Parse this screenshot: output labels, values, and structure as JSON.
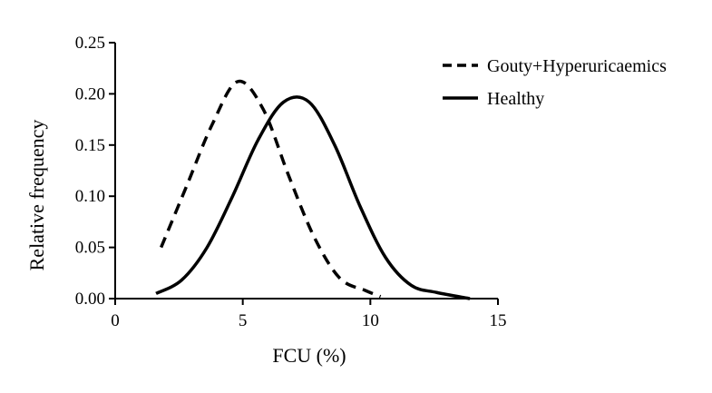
{
  "chart_data": {
    "type": "line",
    "xlabel": "FCU (%)",
    "ylabel": "Relative frequency",
    "xlim": [
      0,
      15
    ],
    "ylim": [
      0,
      0.25
    ],
    "x_ticks": [
      "0",
      "5",
      "10",
      "15"
    ],
    "y_ticks": [
      "0.00",
      "0.05",
      "0.10",
      "0.15",
      "0.20",
      "0.25"
    ],
    "grid": false,
    "legend_position": "top-right",
    "series": [
      {
        "name": "Gouty+Hyperuricaemics",
        "style": "dashed",
        "color": "#000000",
        "x": [
          1.8,
          2.8,
          3.8,
          4.8,
          5.8,
          6.8,
          7.8,
          8.8,
          9.8,
          10.4
        ],
        "y": [
          0.05,
          0.11,
          0.17,
          0.212,
          0.185,
          0.12,
          0.06,
          0.02,
          0.008,
          0.002
        ]
      },
      {
        "name": "Healthy",
        "style": "solid",
        "color": "#000000",
        "x": [
          1.6,
          2.6,
          3.6,
          4.6,
          5.6,
          6.6,
          7.6,
          8.6,
          9.6,
          10.6,
          11.6,
          12.6,
          13.9
        ],
        "y": [
          0.005,
          0.018,
          0.05,
          0.1,
          0.155,
          0.192,
          0.192,
          0.15,
          0.09,
          0.04,
          0.013,
          0.006,
          0.0
        ]
      }
    ]
  }
}
